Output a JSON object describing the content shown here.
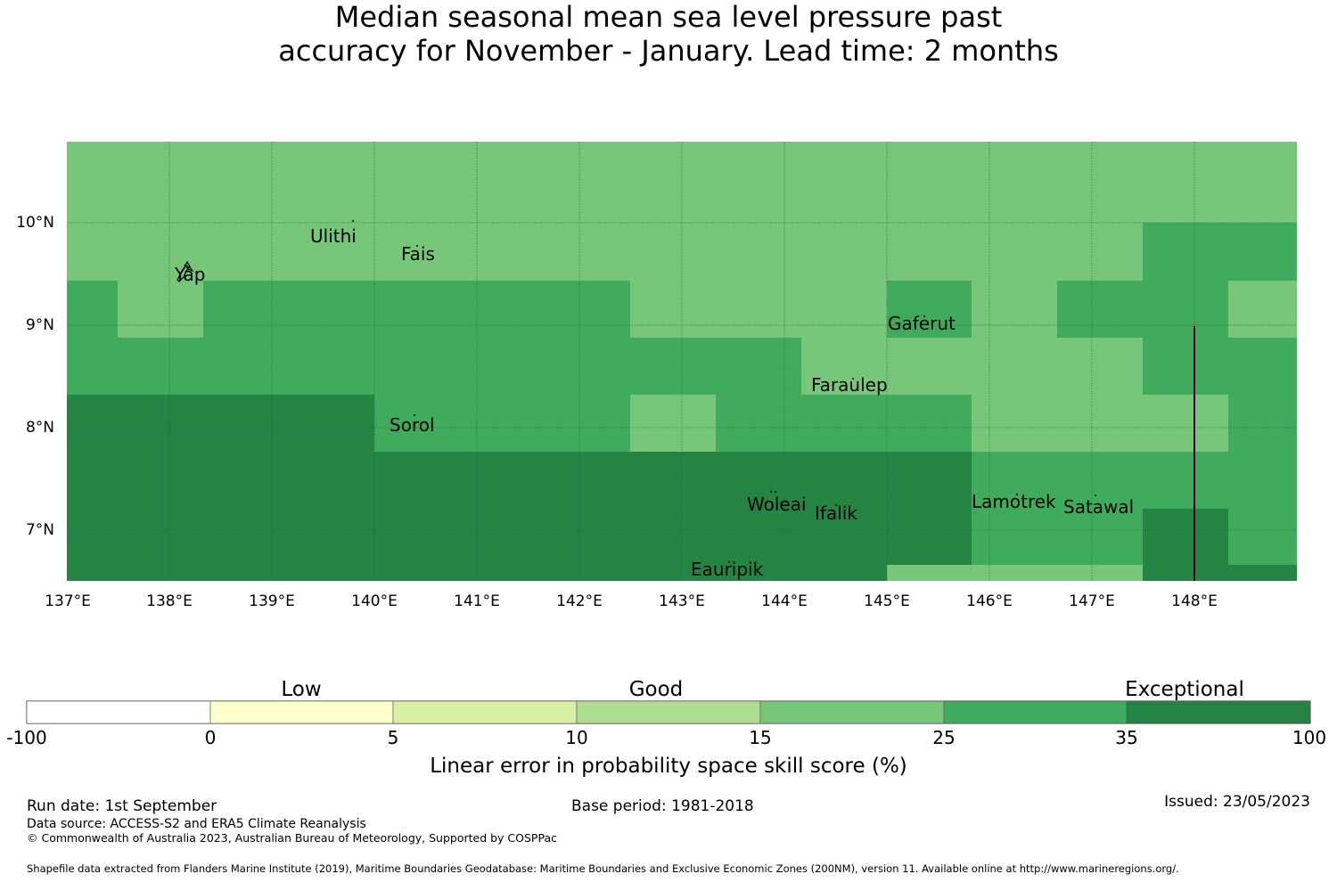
{
  "title": {
    "line1": "Median seasonal mean sea level pressure past",
    "line2": "accuracy for November - January. Lead time: 2 months"
  },
  "map": {
    "lon_range": [
      137,
      149
    ],
    "lat_range": [
      6.5,
      10.8
    ],
    "lon_ticks": [
      "137°E",
      "138°E",
      "139°E",
      "140°E",
      "141°E",
      "142°E",
      "143°E",
      "144°E",
      "145°E",
      "146°E",
      "147°E",
      "148°E"
    ],
    "lat_ticks": [
      "10°N",
      "9°N",
      "8°N",
      "7°N"
    ],
    "cell_colors": {
      "B": "#78c679",
      "C": "#41ab5d",
      "D": "#238443"
    },
    "line_color": "#000000"
  },
  "places": [
    {
      "name": "Yap"
    },
    {
      "name": "Ulithi"
    },
    {
      "name": "Fais"
    },
    {
      "name": "Gaferut"
    },
    {
      "name": "Faraulep"
    },
    {
      "name": "Sorol"
    },
    {
      "name": "Woleai"
    },
    {
      "name": "Ifalik"
    },
    {
      "name": "Lamotrek"
    },
    {
      "name": "Satawal"
    },
    {
      "name": "Eauripik"
    }
  ],
  "colorbar": {
    "categories": [
      "Low",
      "Good",
      "Exceptional"
    ],
    "ticks": [
      "-100",
      "0",
      "5",
      "10",
      "15",
      "25",
      "35",
      "100"
    ],
    "colors": [
      "#ffffff",
      "#ffffcc",
      "#d9f0a3",
      "#addd8e",
      "#78c679",
      "#41ab5d",
      "#238443"
    ],
    "label": "Linear error in probability space skill score (%)"
  },
  "footer": {
    "run_date": "Run date: 1st September",
    "data_source": "Data source: ACCESS-S2 and ERA5 Climate Reanalysis",
    "copyright": "© Commonwealth of Australia 2023, Australian Bureau of Meteorology, Supported by COSPPac",
    "base_period": "Base period: 1981-2018",
    "issued": "Issued: 23/05/2023",
    "shapefile": "Shapefile data extracted from Flanders Marine Institute (2019), Maritime Boundaries Geodatabase: Maritime Boundaries and Exclusive Economic Zones (200NM), version 11. Available online at http://www.marineregions.org/."
  }
}
